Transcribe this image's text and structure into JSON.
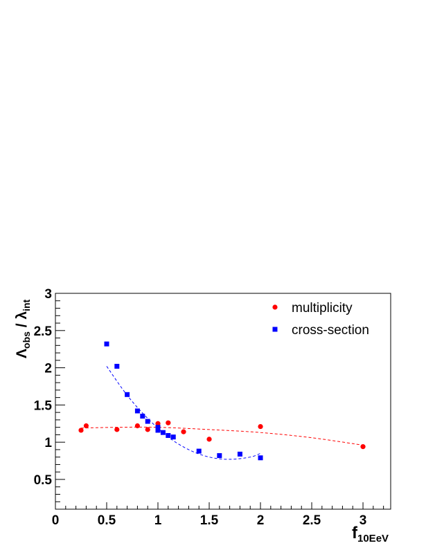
{
  "chart_data": {
    "type": "scatter",
    "title": "",
    "xlabel": {
      "base": "f",
      "sub": "10EeV"
    },
    "ylabel": {
      "base1": "Λ",
      "sub1": "obs",
      "sep": " / ",
      "base2": "λ",
      "sub2": "int"
    },
    "xlim": [
      0,
      3.27
    ],
    "ylim": [
      0.1,
      3.0
    ],
    "x_ticks": [
      0,
      0.5,
      1,
      1.5,
      2,
      2.5,
      3
    ],
    "x_tick_labels": [
      "0",
      "0.5",
      "1",
      "1.5",
      "2",
      "2.5",
      "3"
    ],
    "y_ticks": [
      0.5,
      1,
      1.5,
      2,
      2.5,
      3
    ],
    "y_tick_labels": [
      "0.5",
      "1",
      "1.5",
      "2",
      "2.5",
      "3"
    ],
    "grid": false,
    "legend_position": "top-right",
    "series": [
      {
        "name": "multiplicity",
        "marker": "circle",
        "color": "#ff0000",
        "points": [
          [
            0.25,
            1.16
          ],
          [
            0.3,
            1.22
          ],
          [
            0.6,
            1.17
          ],
          [
            0.8,
            1.22
          ],
          [
            0.9,
            1.17
          ],
          [
            1.0,
            1.25
          ],
          [
            1.1,
            1.26
          ],
          [
            1.25,
            1.14
          ],
          [
            1.5,
            1.04
          ],
          [
            2.0,
            1.21
          ],
          [
            3.0,
            0.94
          ]
        ],
        "fit": {
          "style": "dashed",
          "x_range": [
            0.25,
            3.0
          ],
          "points": [
            [
              0.25,
              1.19
            ],
            [
              0.6,
              1.2
            ],
            [
              1.0,
              1.2
            ],
            [
              1.5,
              1.17
            ],
            [
              2.0,
              1.13
            ],
            [
              2.5,
              1.06
            ],
            [
              3.0,
              0.96
            ]
          ]
        }
      },
      {
        "name": "cross-section",
        "marker": "square",
        "color": "#0000ff",
        "points": [
          [
            0.5,
            2.32
          ],
          [
            0.6,
            2.02
          ],
          [
            0.7,
            1.64
          ],
          [
            0.8,
            1.42
          ],
          [
            0.85,
            1.35
          ],
          [
            0.9,
            1.28
          ],
          [
            1.0,
            1.16
          ],
          [
            1.0,
            1.2
          ],
          [
            1.05,
            1.13
          ],
          [
            1.1,
            1.09
          ],
          [
            1.15,
            1.07
          ],
          [
            1.4,
            0.88
          ],
          [
            1.6,
            0.82
          ],
          [
            1.8,
            0.84
          ],
          [
            2.0,
            0.79
          ]
        ],
        "fit": {
          "style": "dashed",
          "x_range": [
            0.5,
            2.0
          ],
          "points": [
            [
              0.5,
              2.02
            ],
            [
              0.7,
              1.63
            ],
            [
              0.9,
              1.32
            ],
            [
              1.1,
              1.07
            ],
            [
              1.3,
              0.9
            ],
            [
              1.5,
              0.8
            ],
            [
              1.7,
              0.77
            ],
            [
              1.9,
              0.8
            ],
            [
              2.0,
              0.85
            ]
          ]
        }
      }
    ]
  }
}
